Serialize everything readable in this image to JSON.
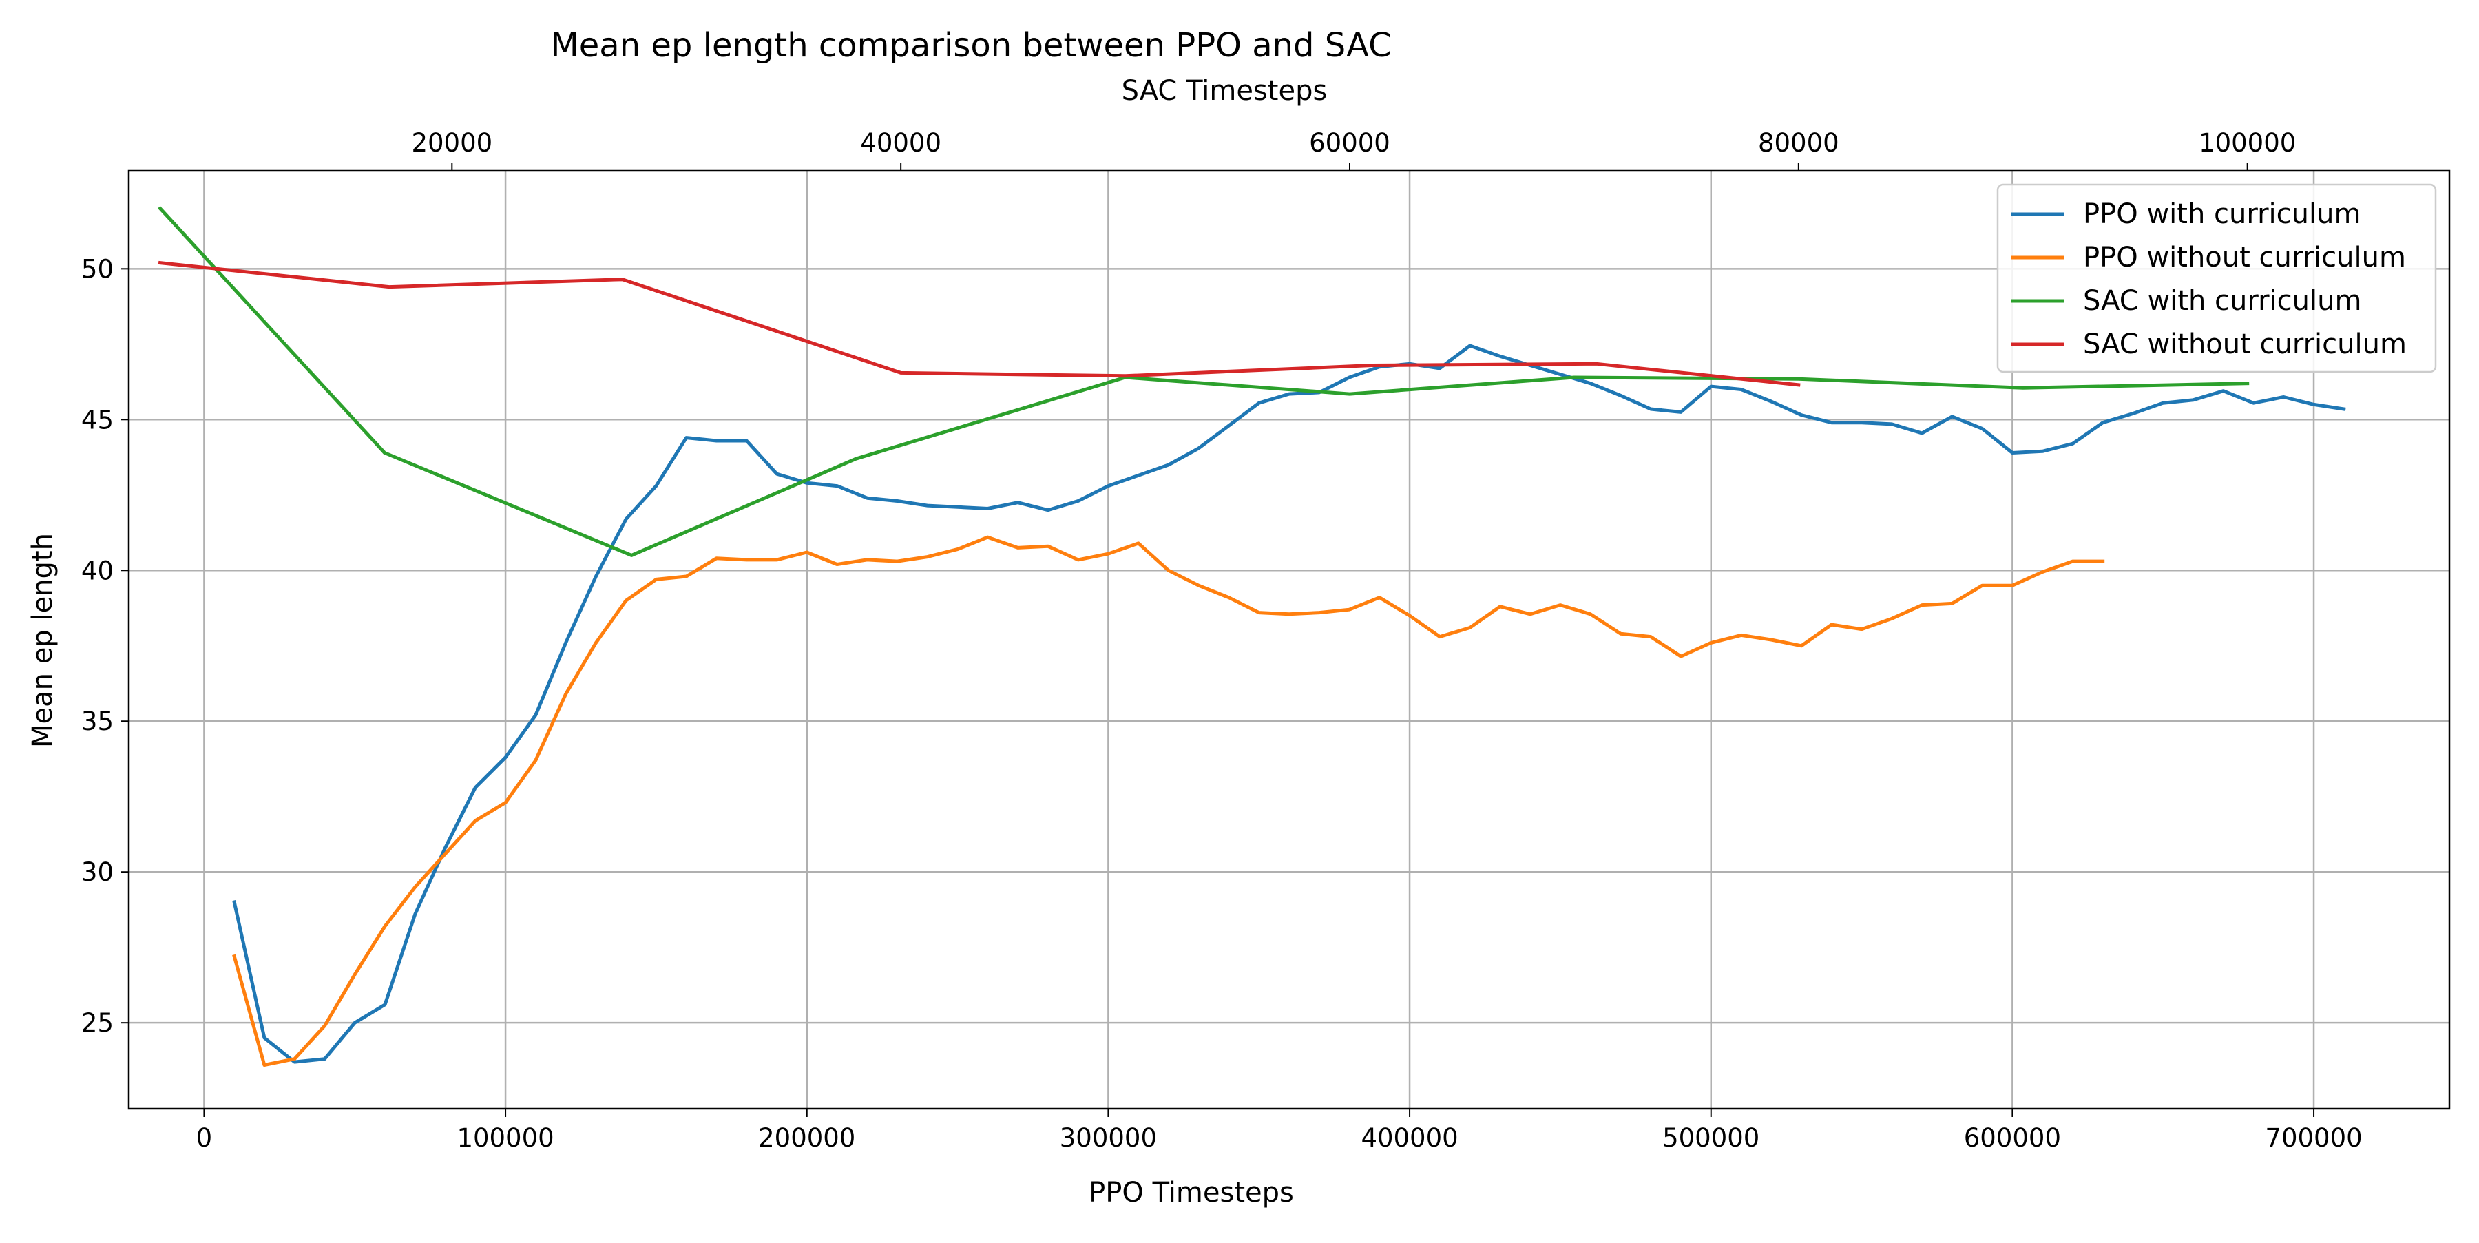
{
  "chart_data": {
    "type": "line",
    "title": "Mean ep length comparison between PPO and SAC",
    "xlabel": "PPO Timesteps",
    "x2label": "SAC Timesteps",
    "ylabel": "Mean ep length",
    "xlim": [
      -25000,
      745000
    ],
    "x2lim": [
      5600,
      109000
    ],
    "ylim": [
      22.15,
      53.25
    ],
    "xticks": [
      0,
      100000,
      200000,
      300000,
      400000,
      500000,
      600000,
      700000
    ],
    "x2ticks": [
      20000,
      40000,
      60000,
      80000,
      100000
    ],
    "yticks": [
      25,
      30,
      35,
      40,
      45,
      50
    ],
    "grid": true,
    "legend_position": "top-right",
    "series": [
      {
        "name": "PPO with curriculum",
        "axis": "bottom",
        "color": "#1f77b4",
        "x": [
          10000,
          20000,
          30000,
          40000,
          50000,
          60000,
          70000,
          80000,
          90000,
          100000,
          110000,
          120000,
          130000,
          140000,
          150000,
          160000,
          170000,
          180000,
          190000,
          200000,
          210000,
          220000,
          230000,
          240000,
          250000,
          260000,
          270000,
          280000,
          290000,
          300000,
          310000,
          320000,
          330000,
          340000,
          350000,
          360000,
          370000,
          380000,
          390000,
          400000,
          410000,
          420000,
          430000,
          440000,
          450000,
          460000,
          470000,
          480000,
          490000,
          500000,
          510000,
          520000,
          530000,
          540000,
          550000,
          560000,
          570000,
          580000,
          590000,
          600000,
          610000,
          620000,
          630000,
          640000,
          650000,
          660000,
          670000,
          680000,
          690000,
          700000,
          710000
        ],
        "values": [
          29.0,
          24.5,
          23.7,
          23.8,
          25.0,
          25.6,
          28.6,
          30.8,
          32.8,
          33.8,
          35.2,
          37.6,
          39.8,
          41.7,
          42.8,
          44.4,
          44.3,
          44.3,
          43.2,
          42.9,
          42.8,
          42.4,
          42.3,
          42.15,
          42.1,
          42.05,
          42.25,
          42.0,
          42.3,
          42.8,
          43.15,
          43.5,
          44.05,
          44.8,
          45.55,
          45.85,
          45.9,
          46.4,
          46.75,
          46.85,
          46.7,
          47.45,
          47.1,
          46.8,
          46.5,
          46.2,
          45.8,
          45.35,
          45.25,
          46.1,
          46.0,
          45.6,
          45.15,
          44.9,
          44.9,
          44.85,
          44.55,
          45.1,
          44.7,
          43.9,
          43.95,
          44.2,
          44.9,
          45.2,
          45.55,
          45.65,
          45.95,
          45.55,
          45.75,
          45.5,
          45.35
        ]
      },
      {
        "name": "PPO without curriculum",
        "axis": "bottom",
        "color": "#ff7f0e",
        "x": [
          10000,
          20000,
          30000,
          40000,
          50000,
          60000,
          70000,
          80000,
          90000,
          100000,
          110000,
          120000,
          130000,
          140000,
          150000,
          160000,
          170000,
          180000,
          190000,
          200000,
          210000,
          220000,
          230000,
          240000,
          250000,
          260000,
          270000,
          280000,
          290000,
          300000,
          310000,
          320000,
          330000,
          340000,
          350000,
          360000,
          370000,
          380000,
          390000,
          400000,
          410000,
          420000,
          430000,
          440000,
          450000,
          460000,
          470000,
          480000,
          490000,
          500000,
          510000,
          520000,
          530000,
          540000,
          550000,
          560000,
          570000,
          580000,
          590000,
          600000,
          610000,
          620000,
          630000
        ],
        "values": [
          27.2,
          23.6,
          23.8,
          24.9,
          26.6,
          28.2,
          29.5,
          30.6,
          31.7,
          32.3,
          33.7,
          35.9,
          37.6,
          39.0,
          39.7,
          39.8,
          40.4,
          40.35,
          40.35,
          40.6,
          40.2,
          40.35,
          40.3,
          40.45,
          40.7,
          41.1,
          40.75,
          40.8,
          40.35,
          40.55,
          40.9,
          40.0,
          39.5,
          39.1,
          38.6,
          38.55,
          38.6,
          38.7,
          39.1,
          38.5,
          37.8,
          38.1,
          38.8,
          38.55,
          38.85,
          38.55,
          37.9,
          37.8,
          37.15,
          37.6,
          37.85,
          37.7,
          37.5,
          38.2,
          38.05,
          38.4,
          38.85,
          38.9,
          39.5,
          39.5,
          39.95,
          40.3,
          40.3
        ]
      },
      {
        "name": "SAC with curriculum",
        "axis": "top",
        "color": "#2ca02c",
        "x": [
          7000,
          17000,
          28000,
          38000,
          50000,
          60000,
          70000,
          80000,
          90000,
          100000
        ],
        "values": [
          52.0,
          43.9,
          40.5,
          43.7,
          46.4,
          45.85,
          46.4,
          46.35,
          46.05,
          46.2
        ]
      },
      {
        "name": "SAC without curriculum",
        "axis": "top",
        "color": "#d62728",
        "x": [
          7000,
          17200,
          27600,
          40000,
          50000,
          61000,
          71000,
          80000
        ],
        "values": [
          50.2,
          49.4,
          49.65,
          46.55,
          46.45,
          46.8,
          46.85,
          46.15
        ]
      }
    ]
  }
}
